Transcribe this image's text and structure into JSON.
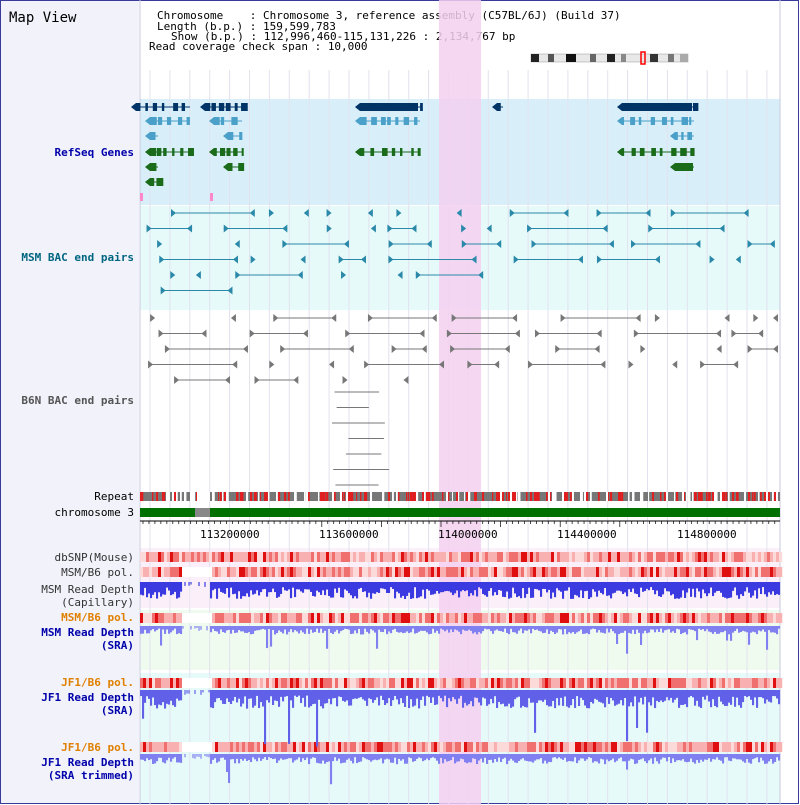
{
  "header": {
    "title": "Map View",
    "chromosome_label": "Chromosome    : ",
    "chromosome_value": "Chromosome 3, reference assembly (C57BL/6J) (Build 37)",
    "length_label": "Length (b.p.) : ",
    "length_value": "159,599,783",
    "show_label": "Show (b.p.) : ",
    "show_value": "112,996,460-115,131,226 : 2,134,767 bp",
    "coverage_label": "Read coverage check span : ",
    "coverage_value": "10,000"
  },
  "tracks": {
    "refseq": {
      "label": "RefSeq Genes",
      "color": "#0000aa"
    },
    "msm_bac": {
      "label": "MSM BAC end pairs",
      "color": "#006680"
    },
    "b6n_bac": {
      "label": "B6N BAC end pairs",
      "color": "#555555"
    },
    "repeat": {
      "label": "Repeat"
    },
    "chromosome": {
      "label": "chromosome 3"
    },
    "dbsnp": {
      "label": "dbSNP(Mouse)"
    },
    "msm_b6_pol_1": {
      "label": "MSM/B6 pol."
    },
    "msm_depth_cap": {
      "label": "MSM Read Depth\n(Capillary)"
    },
    "msm_b6_pol_2": {
      "label": "MSM/B6 pol.",
      "color": "#e08000"
    },
    "msm_depth_sra": {
      "label": "MSM Read Depth\n(SRA)",
      "color": "#0000aa"
    },
    "jf1_b6_pol_1": {
      "label": "JF1/B6 pol.",
      "color": "#e08000"
    },
    "jf1_depth_sra": {
      "label": "JF1 Read Depth\n(SRA)",
      "color": "#0000aa"
    },
    "jf1_b6_pol_2": {
      "label": "JF1/B6 pol.",
      "color": "#e08000"
    },
    "jf1_depth_trim": {
      "label": "JF1 Read Depth\n(SRA trimmed)",
      "color": "#0000aa"
    }
  },
  "axis": {
    "ticks": [
      "113200000",
      "113600000",
      "114000000",
      "114400000",
      "114800000"
    ]
  },
  "colors": {
    "refseq_bg": "#d8effa",
    "bac_bg": "#e6fafa",
    "highlight": "#f5d0f0",
    "chromosome_bar": "#007000",
    "depth_blue": "#3030e0"
  }
}
